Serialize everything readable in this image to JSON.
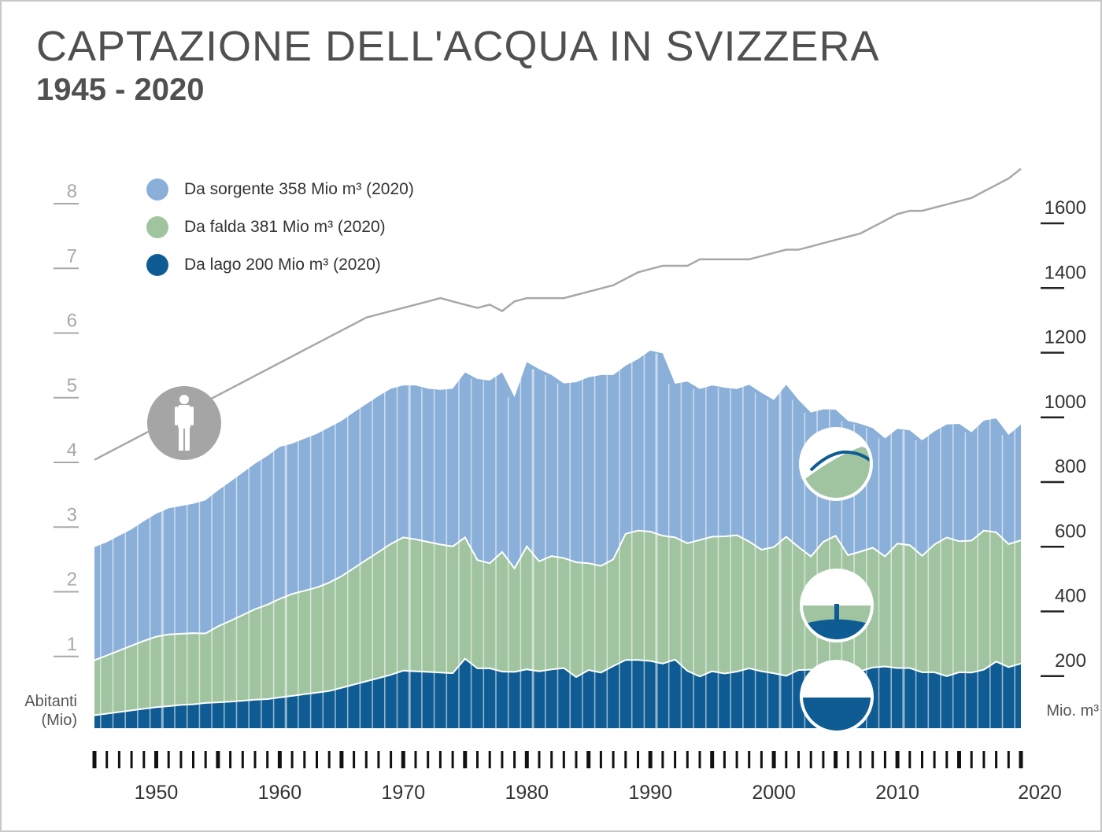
{
  "header": {
    "title": "CAPTAZIONE DELL'ACQUA IN SVIZZERA",
    "subtitle": "1945 - 2020"
  },
  "axes": {
    "left_title_line1": "Abitanti",
    "left_title_line2": "(Mio)",
    "right_title": "Mio. m³"
  },
  "legend": [
    {
      "label": "Da sorgente 358 Mio m³ (2020)",
      "color": "#8aafd8"
    },
    {
      "label": "Da falda 381 Mio m³ (2020)",
      "color": "#9fc49f"
    },
    {
      "label": "Da lago 200 Mio m³ (2020)",
      "color": "#0e5c93"
    }
  ],
  "colors": {
    "spring": "#8aafd8",
    "groundwater": "#9fc49f",
    "lake": "#0e5c93",
    "population_line": "#a8a8a8",
    "icon_circle_gray": "#a5a5a5",
    "text": "#505050"
  },
  "icons": [
    "person-icon",
    "spring-icon",
    "groundwater-well-icon",
    "lake-icon"
  ],
  "chart_data": {
    "type": "area",
    "title": "CAPTAZIONE DELL'ACQUA IN SVIZZERA",
    "subtitle": "1945 - 2020",
    "stacked": true,
    "xlim": [
      1945,
      2020
    ],
    "x_ticks": [
      1950,
      1960,
      1970,
      1980,
      1990,
      2000,
      2010,
      2020
    ],
    "y_right": {
      "label": "Mio. m³",
      "range": [
        0,
        1600
      ],
      "ticks": [
        200,
        400,
        600,
        800,
        1000,
        1200,
        1400,
        1600
      ]
    },
    "y_left": {
      "label": "Abitanti (Mio)",
      "range": [
        0,
        8
      ],
      "ticks": [
        1,
        2,
        3,
        4,
        5,
        6,
        7,
        8
      ]
    },
    "years": [
      1945,
      1946,
      1947,
      1948,
      1949,
      1950,
      1951,
      1952,
      1953,
      1954,
      1955,
      1956,
      1957,
      1958,
      1959,
      1960,
      1961,
      1962,
      1963,
      1964,
      1965,
      1966,
      1967,
      1968,
      1969,
      1970,
      1971,
      1972,
      1973,
      1974,
      1975,
      1976,
      1977,
      1978,
      1979,
      1980,
      1981,
      1982,
      1983,
      1984,
      1985,
      1986,
      1987,
      1988,
      1989,
      1990,
      1991,
      1992,
      1993,
      1994,
      1995,
      1996,
      1997,
      1998,
      1999,
      2000,
      2001,
      2002,
      2003,
      2004,
      2005,
      2006,
      2007,
      2008,
      2009,
      2010,
      2011,
      2012,
      2013,
      2014,
      2015,
      2016,
      2017,
      2018,
      2019,
      2020
    ],
    "series": [
      {
        "name": "Da lago",
        "color": "#0e5c93",
        "values": [
          40,
          45,
          50,
          55,
          60,
          65,
          68,
          72,
          74,
          78,
          80,
          82,
          85,
          88,
          90,
          95,
          100,
          105,
          110,
          115,
          125,
          135,
          145,
          155,
          165,
          178,
          176,
          174,
          172,
          170,
          215,
          185,
          185,
          175,
          174,
          182,
          176,
          182,
          186,
          158,
          180,
          172,
          192,
          211,
          211,
          208,
          200,
          212,
          177,
          160,
          176,
          169,
          175,
          185,
          176,
          170,
          162,
          180,
          181,
          181,
          175,
          173,
          176,
          188,
          191,
          186,
          186,
          173,
          173,
          161,
          173,
          172,
          181,
          206,
          189,
          200
        ]
      },
      {
        "name": "Da falda",
        "color": "#9fc49f",
        "values": [
          170,
          180,
          190,
          200,
          210,
          218,
          222,
          220,
          220,
          215,
          235,
          250,
          265,
          280,
          292,
          305,
          315,
          320,
          325,
          335,
          345,
          360,
          375,
          390,
          405,
          412,
          408,
          402,
          396,
          392,
          375,
          335,
          325,
          370,
          320,
          380,
          340,
          350,
          340,
          355,
          330,
          330,
          330,
          390,
          400,
          400,
          395,
          378,
          395,
          422,
          416,
          424,
          422,
          392,
          376,
          390,
          430,
          380,
          350,
          395,
          420,
          362,
          370,
          370,
          340,
          385,
          380,
          360,
          395,
          429,
          405,
          408,
          430,
          400,
          380,
          381
        ]
      },
      {
        "name": "Da sorgente",
        "color": "#8aafd8",
        "values": [
          350,
          350,
          355,
          360,
          370,
          380,
          390,
          395,
          400,
          412,
          420,
          430,
          440,
          450,
          460,
          470,
          465,
          470,
          475,
          480,
          480,
          482,
          482,
          482,
          480,
          470,
          476,
          474,
          478,
          488,
          510,
          560,
          565,
          555,
          530,
          570,
          594,
          560,
          540,
          557,
          575,
          590,
          570,
          520,
          530,
          560,
          564,
          475,
          500,
          467,
          468,
          460,
          452,
          485,
          485,
          455,
          470,
          455,
          445,
          410,
          390,
          415,
          395,
          370,
          365,
          355,
          355,
          357,
          350,
          349,
          363,
          335,
          340,
          352,
          338,
          358
        ]
      },
      {
        "name": "Abitanti (Mio)",
        "axis": "left",
        "values": [
          4.1,
          4.2,
          4.3,
          4.4,
          4.5,
          4.6,
          4.7,
          4.8,
          4.9,
          5.0,
          5.1,
          5.2,
          5.3,
          5.4,
          5.5,
          5.6,
          5.7,
          5.8,
          5.9,
          6.0,
          6.1,
          6.2,
          6.3,
          6.35,
          6.4,
          6.45,
          6.5,
          6.55,
          6.6,
          6.55,
          6.5,
          6.45,
          6.5,
          6.4,
          6.55,
          6.6,
          6.6,
          6.6,
          6.6,
          6.65,
          6.7,
          6.75,
          6.8,
          6.9,
          7.0,
          7.05,
          7.1,
          7.1,
          7.1,
          7.2,
          7.2,
          7.2,
          7.2,
          7.2,
          7.25,
          7.3,
          7.35,
          7.35,
          7.4,
          7.45,
          7.5,
          7.55,
          7.6,
          7.7,
          7.8,
          7.9,
          7.95,
          7.95,
          8.0,
          8.05,
          8.1,
          8.15,
          8.25,
          8.35,
          8.45,
          8.6
        ]
      }
    ]
  }
}
